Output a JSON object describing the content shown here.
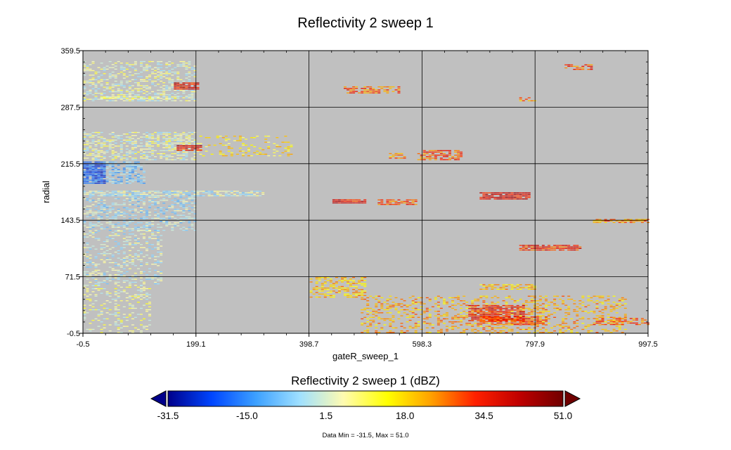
{
  "chart_data": {
    "type": "heatmap",
    "title": "Reflectivity 2 sweep 1",
    "xlabel": "gateR_sweep_1",
    "ylabel": "radial",
    "xlim": [
      -0.5,
      997.5
    ],
    "ylim": [
      -0.5,
      359.5
    ],
    "x_ticks": [
      "-0.5",
      "199.1",
      "398.7",
      "598.3",
      "797.9",
      "997.5"
    ],
    "y_ticks": [
      "-0.5",
      "71.5",
      "143.5",
      "215.5",
      "287.5",
      "359.5"
    ],
    "grid": true,
    "background_color": "#c0c0c0",
    "colorbar": {
      "title": "Reflectivity 2 sweep 1 (dBZ)",
      "min": -31.5,
      "max": 51.0,
      "ticks": [
        "-31.5",
        "-15.0",
        "1.5",
        "18.0",
        "34.5",
        "51.0"
      ],
      "colors": [
        "#00008b",
        "#0046ff",
        "#3ca0ff",
        "#9fe0ff",
        "#fffbb0",
        "#ffff00",
        "#ffa000",
        "#ff2000",
        "#c00000",
        "#700000"
      ]
    },
    "echo_regions": [
      {
        "x": [
          0,
          120
        ],
        "y": [
          0,
          60
        ],
        "dbz": 5,
        "density": 0.28
      },
      {
        "x": [
          0,
          140
        ],
        "y": [
          60,
          130
        ],
        "dbz": 0,
        "density": 0.32
      },
      {
        "x": [
          0,
          200
        ],
        "y": [
          130,
          175
        ],
        "dbz": -3,
        "density": 0.45
      },
      {
        "x": [
          0,
          320
        ],
        "y": [
          174,
          181
        ],
        "dbz": 0,
        "density": 0.75
      },
      {
        "x": [
          0,
          40
        ],
        "y": [
          190,
          218
        ],
        "dbz": -20,
        "density": 0.9
      },
      {
        "x": [
          40,
          110
        ],
        "y": [
          190,
          218
        ],
        "dbz": -8,
        "density": 0.6
      },
      {
        "x": [
          0,
          200
        ],
        "y": [
          220,
          255
        ],
        "dbz": 3,
        "density": 0.55
      },
      {
        "x": [
          200,
          370
        ],
        "y": [
          225,
          250
        ],
        "dbz": 15,
        "density": 0.22
      },
      {
        "x": [
          0,
          200
        ],
        "y": [
          295,
          345
        ],
        "dbz": 3,
        "density": 0.45
      },
      {
        "x": [
          30,
          170
        ],
        "y": [
          298,
          301
        ],
        "dbz": 5,
        "density": 0.85
      },
      {
        "x": [
          160,
          205
        ],
        "y": [
          310,
          318
        ],
        "dbz": 38,
        "density": 0.95
      },
      {
        "x": [
          165,
          210
        ],
        "y": [
          232,
          238
        ],
        "dbz": 40,
        "density": 0.9
      },
      {
        "x": [
          400,
          500
        ],
        "y": [
          45,
          70
        ],
        "dbz": 20,
        "density": 0.5
      },
      {
        "x": [
          490,
          960
        ],
        "y": [
          0,
          48
        ],
        "dbz": 22,
        "density": 0.32
      },
      {
        "x": [
          680,
          780
        ],
        "y": [
          15,
          35
        ],
        "dbz": 35,
        "density": 0.85
      },
      {
        "x": [
          700,
          820
        ],
        "y": [
          10,
          20
        ],
        "dbz": 30,
        "density": 0.8
      },
      {
        "x": [
          900,
          997
        ],
        "y": [
          10,
          18
        ],
        "dbz": 28,
        "density": 0.6
      },
      {
        "x": [
          700,
          800
        ],
        "y": [
          55,
          62
        ],
        "dbz": 20,
        "density": 0.65
      },
      {
        "x": [
          770,
          880
        ],
        "y": [
          105,
          112
        ],
        "dbz": 33,
        "density": 0.9
      },
      {
        "x": [
          700,
          790
        ],
        "y": [
          170,
          178
        ],
        "dbz": 38,
        "density": 0.9
      },
      {
        "x": [
          440,
          500
        ],
        "y": [
          165,
          170
        ],
        "dbz": 36,
        "density": 0.9
      },
      {
        "x": [
          520,
          590
        ],
        "y": [
          163,
          170
        ],
        "dbz": 30,
        "density": 0.85
      },
      {
        "x": [
          590,
          670
        ],
        "y": [
          220,
          232
        ],
        "dbz": 30,
        "density": 0.7
      },
      {
        "x": [
          540,
          570
        ],
        "y": [
          222,
          228
        ],
        "dbz": 25,
        "density": 0.7
      },
      {
        "x": [
          460,
          560
        ],
        "y": [
          305,
          313
        ],
        "dbz": 28,
        "density": 0.6
      },
      {
        "x": [
          900,
          997
        ],
        "y": [
          140,
          144
        ],
        "dbz": 25,
        "density": 0.7
      },
      {
        "x": [
          850,
          900
        ],
        "y": [
          335,
          342
        ],
        "dbz": 30,
        "density": 0.7
      },
      {
        "x": [
          770,
          800
        ],
        "y": [
          295,
          300
        ],
        "dbz": 25,
        "density": 0.6
      }
    ]
  },
  "footer": {
    "data_range": "Data Min = -31.5, Max = 51.0"
  }
}
